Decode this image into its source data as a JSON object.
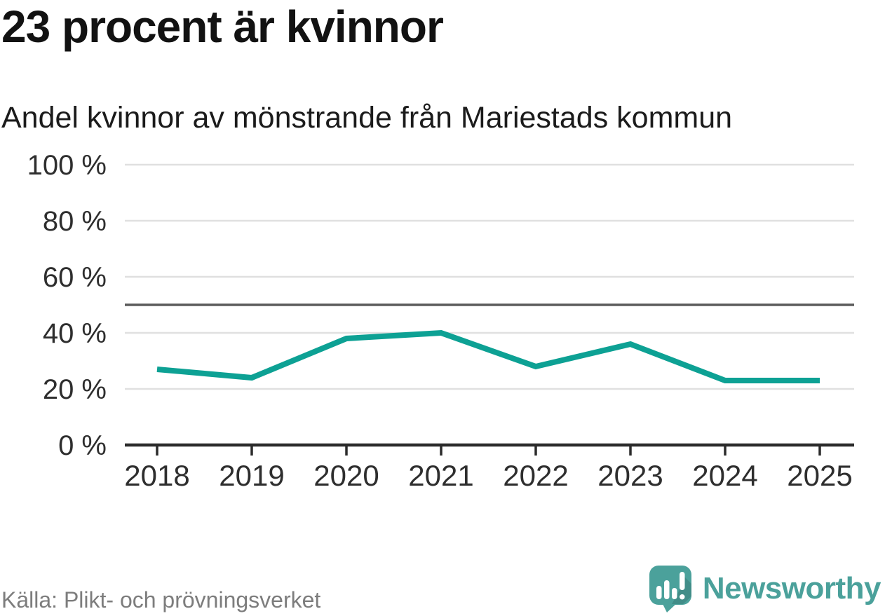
{
  "chart_data": {
    "type": "line",
    "title": "23 procent är kvinnor",
    "subtitle": "Andel kvinnor av mönstrande från Mariestads kommun",
    "x": [
      2018,
      2019,
      2020,
      2021,
      2022,
      2023,
      2024,
      2025
    ],
    "series": [
      {
        "name": "Andel kvinnor av mönstrande",
        "values": [
          27,
          24,
          38,
          40,
          28,
          36,
          23,
          23
        ],
        "color": "#0da194"
      }
    ],
    "ylim": [
      0,
      100
    ],
    "yticks": [
      0,
      20,
      40,
      60,
      80,
      100
    ],
    "ytick_suffix": " %",
    "reference_line": {
      "value": 50
    },
    "grid": "horizontal",
    "legend": "none"
  },
  "footer": {
    "source": "Källa: Plikt- och prövningsverket",
    "brand": "Newsworthy"
  },
  "style": {
    "accent": "#0da194",
    "brand_teal": "#4ba19b",
    "grid_color": "#e0e0e0",
    "reference_color": "#5b5b5b",
    "axis_color": "#2b2b2b",
    "tick_label_color": "#2e2e2e",
    "text_gray": "#7d7d7d"
  }
}
